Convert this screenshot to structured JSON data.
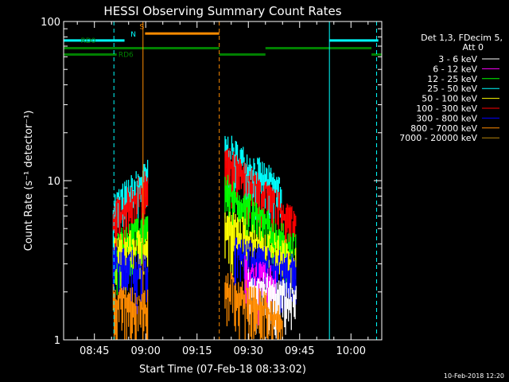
{
  "chart_data": {
    "type": "line",
    "title": "HESSI Observing Summary Count Rates",
    "xlabel": "Start Time (07-Feb-18 08:33:02)",
    "ylabel": "Count Rate (s⁻¹ detector⁻¹)",
    "yscale": "log",
    "ylim": [
      1,
      100
    ],
    "xlim_min": [
      36,
      129
    ],
    "x_ticks": [
      {
        "min": 45,
        "label": "08:45"
      },
      {
        "min": 60,
        "label": "09:00"
      },
      {
        "min": 75,
        "label": "09:15"
      },
      {
        "min": 90,
        "label": "09:30"
      },
      {
        "min": 105,
        "label": "09:45"
      },
      {
        "min": 120,
        "label": "10:00"
      }
    ],
    "y_ticks": [
      {
        "value": 1,
        "label": "1"
      },
      {
        "value": 10,
        "label": "10"
      },
      {
        "value": 100,
        "label": "100"
      }
    ],
    "legend": {
      "header": [
        "Det 1,3, FDecim 5,",
        "Att 0"
      ],
      "entries": [
        {
          "name": "3 - 6 keV",
          "color": "#ffffff"
        },
        {
          "name": "6 - 12 keV",
          "color": "#ff00ff"
        },
        {
          "name": "12 - 25 keV",
          "color": "#00ff00"
        },
        {
          "name": "25 - 50 keV",
          "color": "#00ffff"
        },
        {
          "name": "50 - 100 keV",
          "color": "#ffff00"
        },
        {
          "name": "100 - 300 keV",
          "color": "#ff0000"
        },
        {
          "name": "300 - 800 keV",
          "color": "#0000ff"
        },
        {
          "name": "800 - 7000 keV",
          "color": "#ff8c00"
        },
        {
          "name": "7000 - 20000 keV",
          "color": "#b8860b"
        }
      ]
    },
    "series": [
      {
        "name": "25 - 50 keV",
        "color": "#00ffff",
        "segments": [
          {
            "x": [
              50.5,
              60.6
            ],
            "y": [
              7.5,
              12
            ]
          },
          {
            "x": [
              83.2,
              99.8
            ],
            "y": [
              18,
              9.5
            ]
          }
        ]
      },
      {
        "name": "100 - 300 keV",
        "color": "#ff0000",
        "segments": [
          {
            "x": [
              50.5,
              60.6
            ],
            "y": [
              6.5,
              10.5
            ]
          },
          {
            "x": [
              83.2,
              104
            ],
            "y": [
              15,
              6
            ]
          }
        ]
      },
      {
        "name": "12 - 25 keV",
        "color": "#00ff00",
        "segments": [
          {
            "x": [
              50.5,
              60.6
            ],
            "y": [
              4,
              6
            ]
          },
          {
            "x": [
              83.2,
              104
            ],
            "y": [
              10,
              4
            ]
          }
        ]
      },
      {
        "name": "50 - 100 keV",
        "color": "#ffff00",
        "segments": [
          {
            "x": [
              50.5,
              60.6
            ],
            "y": [
              4,
              4.5
            ]
          },
          {
            "x": [
              83.2,
              104
            ],
            "y": [
              6,
              3.5
            ]
          }
        ]
      },
      {
        "name": "300 - 800 keV",
        "color": "#0000ff",
        "segments": [
          {
            "x": [
              50.5,
              60.6
            ],
            "y": [
              3.5,
              3
            ]
          },
          {
            "x": [
              86,
              104
            ],
            "y": [
              4,
              3
            ]
          }
        ]
      },
      {
        "name": "6 - 12 keV",
        "color": "#ff00ff",
        "segments": [
          {
            "x": [
              89,
              98
            ],
            "y": [
              3,
              2.5
            ]
          }
        ]
      },
      {
        "name": "3 - 6 keV",
        "color": "#ffffff",
        "segments": [
          {
            "x": [
              90,
              104
            ],
            "y": [
              2.5,
              2
            ]
          }
        ]
      },
      {
        "name": "800 - 7000 keV",
        "color": "#ff8c00",
        "segments": [
          {
            "x": [
              50.5,
              60.6
            ],
            "y": [
              2,
              1.8
            ]
          },
          {
            "x": [
              83.2,
              100
            ],
            "y": [
              2.5,
              1.5
            ]
          }
        ]
      }
    ],
    "status_bars": [
      {
        "y": 76,
        "color": "#00ffff",
        "x": [
          [
            36,
            53.8
          ],
          [
            113.7,
            128
          ]
        ]
      },
      {
        "y": 84,
        "color": "#ff8c00",
        "x": [
          [
            59.8,
            81.5
          ]
        ]
      },
      {
        "y": 68,
        "color": "#008000",
        "x": [
          [
            36,
            81.5
          ],
          [
            95,
            126
          ]
        ]
      },
      {
        "y": 62,
        "color": "#008000",
        "x": [
          [
            36,
            51.5
          ],
          [
            81.5,
            95
          ],
          [
            126,
            129
          ]
        ]
      }
    ],
    "markers": [
      {
        "x": 50.7,
        "color": "#00ffff",
        "style": "dashed"
      },
      {
        "x": 59.2,
        "color": "#ff8c00",
        "style": "solid"
      },
      {
        "x": 81.5,
        "color": "#ff8c00",
        "style": "dashed"
      },
      {
        "x": 113.7,
        "color": "#00ffff",
        "style": "solid"
      },
      {
        "x": 127.5,
        "color": "#00ffff",
        "style": "dashed"
      }
    ],
    "annotations": [
      {
        "text": "RD0",
        "color": "#008000",
        "x": 41,
        "y": 76
      },
      {
        "text": "RD6",
        "color": "#008000",
        "x": 52,
        "y": 62
      },
      {
        "text": "S",
        "color": "#ff8c00",
        "x": 58.2,
        "y": 93
      },
      {
        "text": "N",
        "color": "#00ffff",
        "x": 55.6,
        "y": 83
      }
    ]
  },
  "footer": {
    "timestamp": "10-Feb-2018 12:20"
  }
}
